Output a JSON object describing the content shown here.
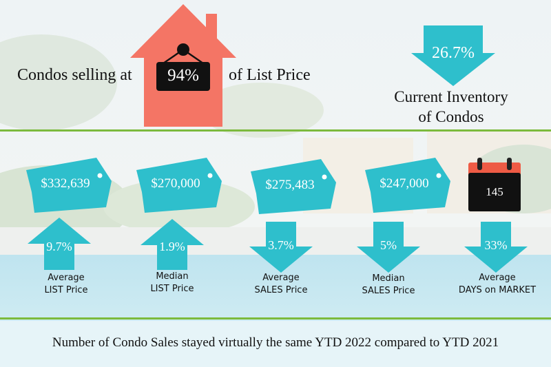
{
  "headline": {
    "prefix": "Condos selling at",
    "percent": "94%",
    "suffix": "of List Price"
  },
  "inventory": {
    "value": "26.7%",
    "label_line1": "Current Inventory",
    "label_line2": "of Condos"
  },
  "tags": [
    {
      "value": "$332,639"
    },
    {
      "value": "$270,000"
    },
    {
      "value": "$275,483"
    },
    {
      "value": "$247,000"
    }
  ],
  "calendar": {
    "value": "145"
  },
  "stats": [
    {
      "change": "9.7%",
      "direction": "up",
      "line1": "Average",
      "line2": "LIST Price"
    },
    {
      "change": "1.9%",
      "direction": "up",
      "line1": "Median",
      "line2": "LIST Price"
    },
    {
      "change": "3.7%",
      "direction": "down",
      "line1": "Average",
      "line2": "SALES Price"
    },
    {
      "change": "5%",
      "direction": "down",
      "line1": "Median",
      "line2": "SALES Price"
    },
    {
      "change": "33%",
      "direction": "down",
      "line1": "Average",
      "line2": "DAYS on MARKET"
    }
  ],
  "footer": "Number of Condo Sales stayed virtually the same YTD 2022 compared to YTD 2021",
  "colors": {
    "teal": "#2ebfcc",
    "house": "#f47565",
    "green": "#7cba3d",
    "calendar_red": "#ee5b45",
    "dark": "#111111"
  }
}
